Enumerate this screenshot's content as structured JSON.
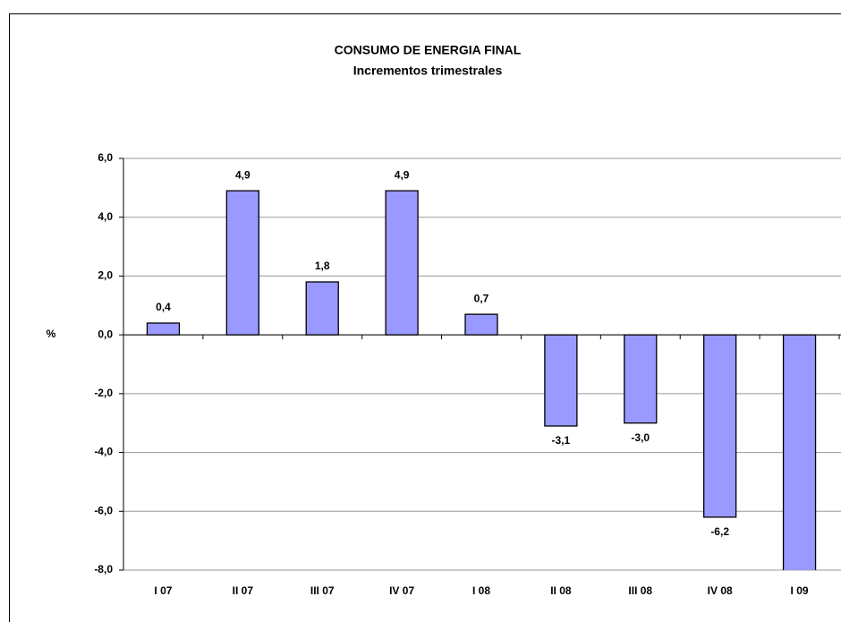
{
  "chart_data": {
    "type": "bar",
    "title": "CONSUMO DE ENERGIA FINAL",
    "subtitle": "Incrementos trimestrales",
    "y_label": "%",
    "categories": [
      "I 07",
      "II 07",
      "III 07",
      "IV 07",
      "I 08",
      "II 08",
      "III 08",
      "IV 08",
      "I 09"
    ],
    "values": [
      0.4,
      4.9,
      1.8,
      4.9,
      0.7,
      -3.1,
      -3.0,
      -6.2,
      -8.9
    ],
    "value_labels": [
      "0,4",
      "4,9",
      "1,8",
      "4,9",
      "0,7",
      "-3,1",
      "-3,0",
      "-6,2",
      null
    ],
    "color": "#9999ff",
    "ylim": [
      -8,
      6
    ],
    "yticks": [
      {
        "value": -8,
        "label": "-8,0"
      },
      {
        "value": -6,
        "label": "-6,0"
      },
      {
        "value": -4,
        "label": "-4,0"
      },
      {
        "value": -2,
        "label": "-2,0"
      },
      {
        "value": 0,
        "label": "0,0"
      },
      {
        "value": 2,
        "label": "2,0"
      },
      {
        "value": 4,
        "label": "4,0"
      },
      {
        "value": 6,
        "label": "6,0"
      }
    ],
    "grid": true
  }
}
